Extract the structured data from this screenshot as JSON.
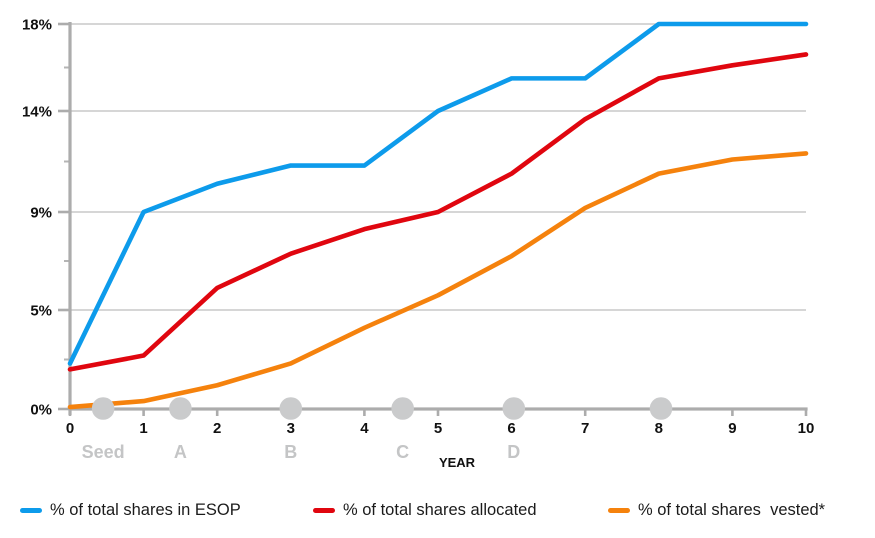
{
  "chart_data": {
    "type": "line",
    "title": "",
    "xlabel": "YEAR",
    "ylabel": "",
    "grid": true,
    "legend_position": "bottom",
    "x": [
      0,
      1,
      2,
      3,
      4,
      5,
      6,
      7,
      8,
      9,
      10
    ],
    "x_tick_labels": [
      "0",
      "1",
      "2",
      "3",
      "4",
      "5",
      "6",
      "7",
      "8",
      "9",
      "10"
    ],
    "y_ticks": [
      0,
      5,
      9,
      14,
      18
    ],
    "y_tick_labels": [
      "0%",
      "5%",
      "9%",
      "14%",
      "18%"
    ],
    "ylim": [
      0,
      18
    ],
    "series": [
      {
        "name": "% of total shares in ESOP",
        "color": "#0d9beb",
        "values": [
          2.3,
          9,
          10.4,
          11.3,
          11.3,
          14,
          15.5,
          15.5,
          18,
          18,
          18
        ]
      },
      {
        "name": "% of total shares allocated",
        "color": "#e0060f",
        "values": [
          2.0,
          2.7,
          5.9,
          7.3,
          8.3,
          9.0,
          10.9,
          13.6,
          15.5,
          16.1,
          16.6
        ]
      },
      {
        "name": "% of total shares  vested*",
        "color": "#f5820d",
        "values": [
          0.1,
          0.4,
          1.2,
          2.3,
          4.1,
          5.6,
          7.2,
          9.2,
          10.9,
          11.6,
          11.9
        ]
      }
    ],
    "milestones": [
      {
        "label": "Seed",
        "year": 0.45
      },
      {
        "label": "A",
        "year": 1.5
      },
      {
        "label": "B",
        "year": 3.0
      },
      {
        "label": "C",
        "year": 4.52
      },
      {
        "label": "D",
        "year": 6.03
      },
      {
        "label": "",
        "year": 8.03
      }
    ],
    "colors": {
      "axis": "#acacac",
      "gridline": "#c9c9c9",
      "milestone_dot": "#cacbcc",
      "milestone_label": "#c4c5c6"
    }
  }
}
